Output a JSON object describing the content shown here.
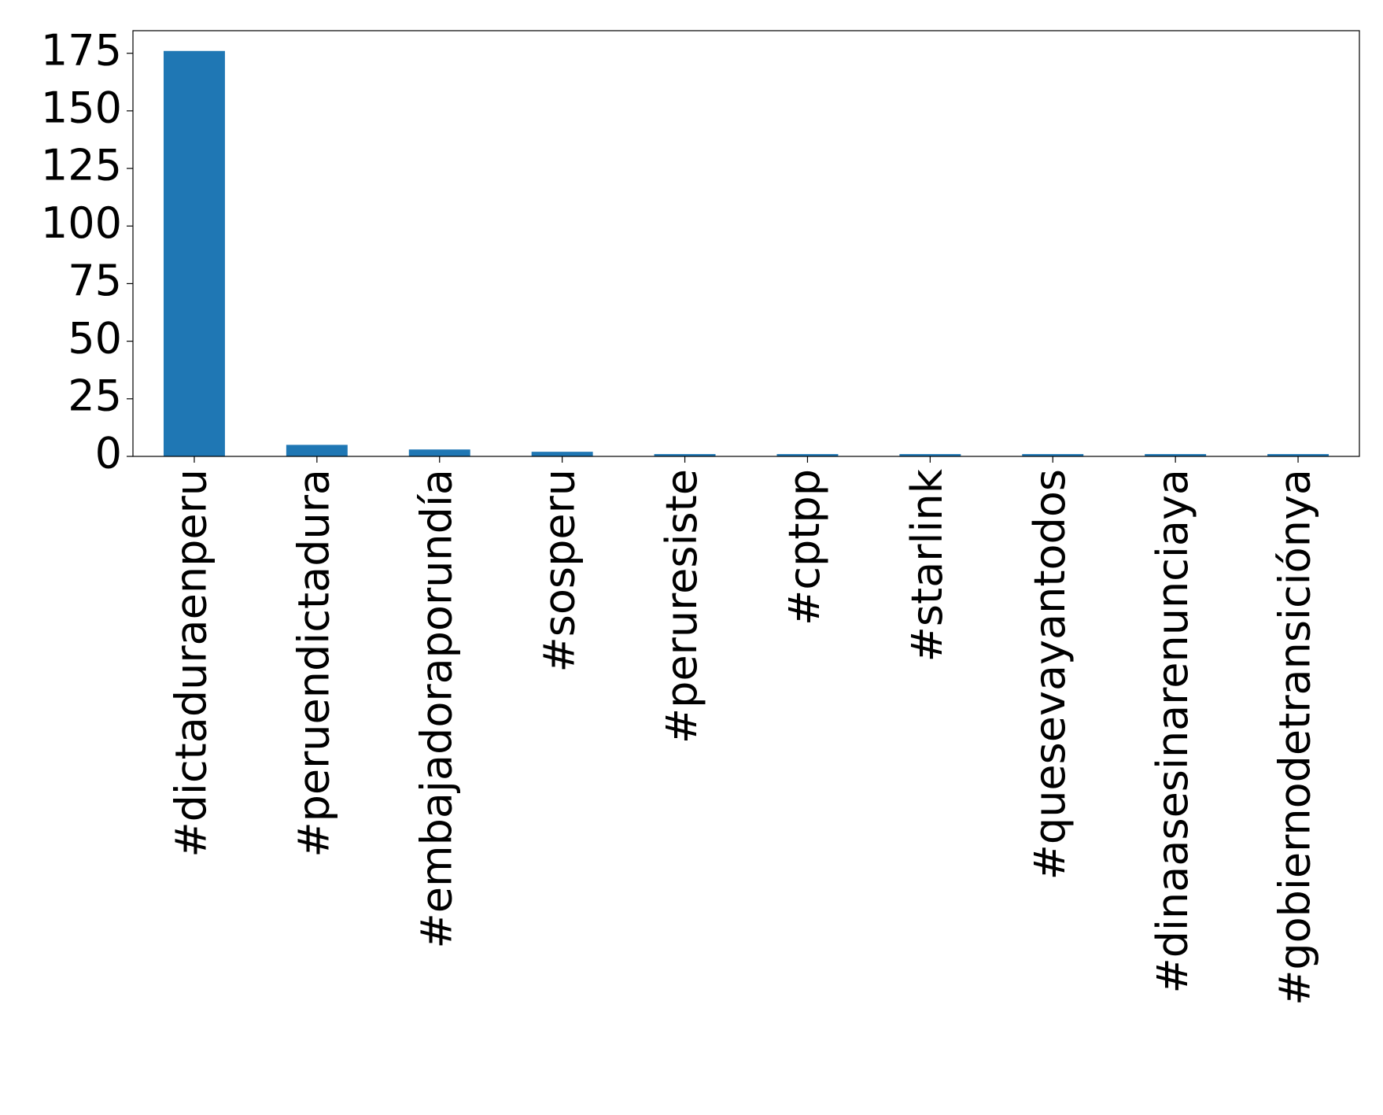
{
  "chart_data": {
    "type": "bar",
    "categories": [
      "#dictaduraenperu",
      "#peruendictadura",
      "#embajadoraporundía",
      "#sosperu",
      "#peruresiste",
      "#cptpp",
      "#starlink",
      "#quesevayantodos",
      "#dinaasesinarenunciaya",
      "#gobiernodetransiciónya"
    ],
    "values": [
      176,
      5,
      3,
      2,
      1,
      1,
      1,
      1,
      1,
      1
    ],
    "color": "#1f77b4",
    "ylim": [
      0,
      184.8
    ],
    "yticks": [
      0,
      25,
      50,
      75,
      100,
      125,
      150,
      175
    ],
    "grid": false
  }
}
